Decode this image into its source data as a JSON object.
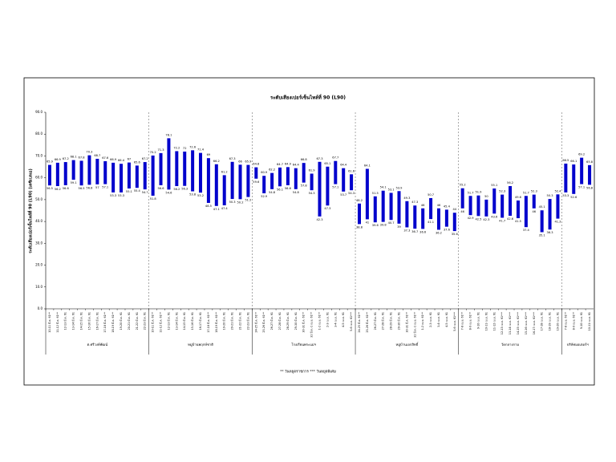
{
  "chart_data": {
    "type": "range_bar",
    "title": "ระดับเสียงเปอร์เซ็นไทล์ที่ 90 (L90)",
    "y_label": "ระดับเสียงเปอร์เซ็นไทล์ที่ 90 (L90) (เดซิเบลเอ)",
    "note": "** วันหยุดราชการ   *** วันหยุดพิเศษ",
    "color": "#0000cc",
    "ylim": [
      0,
      90
    ],
    "yticks": [
      {
        "value": 0,
        "label": "0.0"
      },
      {
        "value": 10,
        "label": "10.0"
      },
      {
        "value": 20,
        "label": "20.0"
      },
      {
        "value": 30,
        "label": "30.0"
      },
      {
        "value": 40,
        "label": "40.0"
      },
      {
        "value": 50,
        "label": "50.0"
      },
      {
        "value": 60,
        "label": "60.0"
      },
      {
        "value": 70,
        "label": "70.0"
      },
      {
        "value": 80,
        "label": "80.0"
      },
      {
        "value": 90,
        "label": "90.0"
      }
    ],
    "groups": [
      {
        "label": "ต.ศรีวงษ์พัฒน์",
        "categories": [
          "10-11 มี.ค. 61**",
          "11-12 มี.ค. 61**",
          "12-13 มี.ค. 61",
          "13-14 มี.ค. 61",
          "14-15 มี.ค. 61",
          "15-16 มี.ค. 61",
          "16-17 มี.ค. 61",
          "17-18 มี.ค. 61**",
          "18-19 มี.ค. 61**",
          "19-20 มี.ค. 61",
          "20-21 มี.ค. 61",
          "21-22 มี.ค. 61",
          "22-23 มี.ค. 61"
        ],
        "low": [
          56.5,
          56.2,
          56.6,
          59.1,
          56.5,
          56.8,
          57.0,
          57.1,
          53.3,
          53.3,
          55.1,
          55.4,
          54.7
        ],
        "high": [
          65.9,
          66.9,
          67.2,
          68.1,
          67.8,
          70.3,
          68.7,
          67.6,
          66.9,
          66.4,
          67.0,
          65.6,
          67.2
        ]
      },
      {
        "label": "หมู่บ้านพฤกษ์ชาติ",
        "categories": [
          "10-11 มี.ค. 61**",
          "11-12 มี.ค. 61**",
          "12-13 มี.ค. 61",
          "13-14 มี.ค. 61",
          "14-15 มี.ค. 61",
          "15-16 มี.ค. 61",
          "16-17 มี.ค. 61",
          "17-18 มี.ค. 61**",
          "18-19 มี.ค. 61**",
          "19-20 มี.ค. 61",
          "20-21 มี.ค. 61",
          "21-22 มี.ค. 61",
          "22-23 มี.ค. 61"
        ],
        "low": [
          51.8,
          56.6,
          54.6,
          56.2,
          56.3,
          53.8,
          53.2,
          48.5,
          47.1,
          47.4,
          50.3,
          50.2,
          51.2
        ],
        "high": [
          70.2,
          71.3,
          78.1,
          72.2,
          72.0,
          72.6,
          71.4,
          69.0,
          66.2,
          61.2,
          67.3,
          66.0,
          65.9
        ]
      },
      {
        "label": "โรงเรียนพระแม่ฯ",
        "categories": [
          "24-25 มี.ค. 61**",
          "25-26 มี.ค. 61**",
          "26-27 มี.ค. 61",
          "27-28 มี.ค. 61",
          "28-29 มี.ค. 61",
          "29-30 มี.ค. 61",
          "30-31 มี.ค. 61**",
          "31 มี.ค.-1 เม.ย. 61**",
          "1-2 เม.ย. 61**",
          "2-3 เม.ย. 61",
          "3-4 เม.ย. 61",
          "4-5 เม.ย. 61",
          "5-6 เม.ย. 61***"
        ],
        "low": [
          59.6,
          52.9,
          54.8,
          56.1,
          56.6,
          54.8,
          57.8,
          54.3,
          42.3,
          47.3,
          57.1,
          53.7,
          54.3
        ],
        "high": [
          64.8,
          60.9,
          62.2,
          64.7,
          64.9,
          64.4,
          66.8,
          61.9,
          67.3,
          65.1,
          67.7,
          64.4,
          61.6
        ]
      },
      {
        "label": "หมู่บ้านเอกสิทธิ์",
        "categories": [
          "24-25 มี.ค. 61**",
          "25-26 มี.ค. 61**",
          "26-27 มี.ค. 61",
          "27-28 มี.ค. 61",
          "28-29 มี.ค. 61",
          "29-30 มี.ค. 61",
          "30-31 มี.ค. 61**",
          "31 มี.ค.-1 เม.ย. 61**",
          "1-2 เม.ย. 61**",
          "2-3 เม.ย. 61",
          "3-4 เม.ย. 61",
          "4-5 เม.ย. 61",
          "5-6 เม.ย. 61***"
        ],
        "low": [
          38.8,
          41.0,
          39.6,
          39.8,
          40.7,
          39.0,
          37.3,
          36.7,
          36.6,
          41.1,
          36.2,
          37.6,
          35.6
        ],
        "high": [
          48.2,
          64.1,
          51.5,
          54.1,
          53.1,
          53.9,
          49.3,
          47.3,
          46.0,
          50.7,
          46.0,
          45.4,
          44.0
        ]
      },
      {
        "label": "วัดกลางกาม",
        "categories": [
          "7-8 เม.ย. 61**",
          "8-9 เม.ย. 61**",
          "9-10 เม.ย. 61",
          "10-11 เม.ย. 61",
          "11-12 เม.ย. 61",
          "12-13 เม.ย. 61***",
          "13-14 เม.ย. 61***",
          "14-15 เม.ย. 61***",
          "15-16 เม.ย. 61***",
          "16-17 เม.ย. 61***",
          "17-18 เม.ย. 61",
          "18-19 เม.ย. 61",
          "19-20 เม.ย. 61"
        ],
        "low": [
          46.0,
          42.9,
          42.5,
          42.3,
          43.6,
          41.7,
          42.6,
          41.5,
          37.4,
          46.0,
          35.1,
          36.3,
          41.3
        ],
        "high": [
          55.2,
          51.7,
          51.9,
          50.0,
          55.1,
          52.3,
          56.2,
          49.6,
          51.7,
          52.3,
          45.1,
          50.3,
          52.4
        ]
      },
      {
        "label": "บริษัทมอเตอร์ฯ",
        "categories": [
          "7-8 เม.ย. 61**",
          "8-9 เม.ย. 61**",
          "9-10 เม.ย. 61",
          "10-11 เม.ย. 61"
        ],
        "low": [
          53.3,
          52.6,
          57.1,
          56.8
        ],
        "high": [
          66.5,
          66.1,
          69.2,
          65.8
        ]
      }
    ]
  }
}
